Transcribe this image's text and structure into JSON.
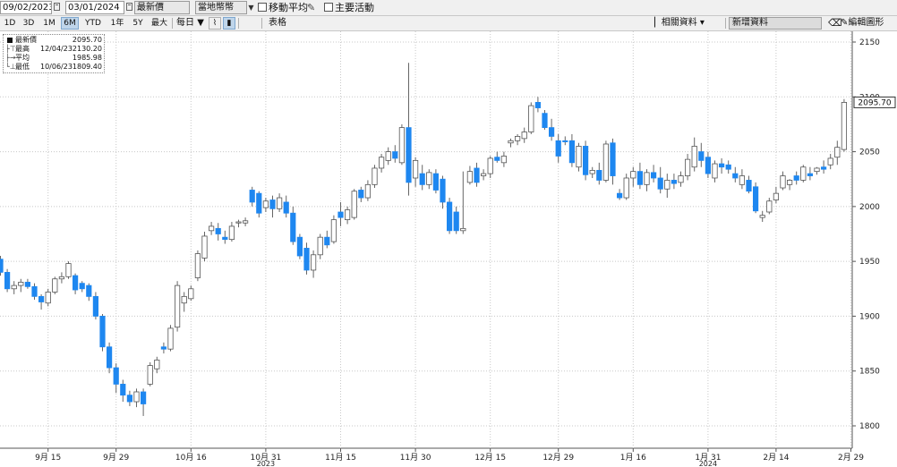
{
  "toolbar": {
    "start_date": "09/02/2023",
    "end_date": "03/01/2024",
    "price_type": "最新價",
    "currency": "當地幣幣",
    "moving_avg_label": "移動平均",
    "key_events_label": "主要活動"
  },
  "periods": [
    "1D",
    "3D",
    "1M",
    "6M",
    "YTD",
    "1年",
    "5Y",
    "最大"
  ],
  "active_period": "6M",
  "frequency": "每日",
  "chart_type_label": "表格",
  "related_data_label": "相關資料",
  "add_data_label": "新增資料",
  "edit_chart_label": "編輯圖形",
  "legend": {
    "items": [
      {
        "name": "最新價",
        "date": "",
        "value": "2095.70"
      },
      {
        "name": "最高",
        "date": "12/04/23",
        "value": "2130.20"
      },
      {
        "name": "平均",
        "date": "",
        "value": "1985.98"
      },
      {
        "name": "最低",
        "date": "10/06/23",
        "value": "1809.40"
      }
    ]
  },
  "last_price_tag": "2095.70",
  "chart_data": {
    "type": "candlestick",
    "ylim": [
      1790,
      2160
    ],
    "y_ticks": [
      1800,
      1850,
      1900,
      1950,
      2000,
      2050,
      2100,
      2150
    ],
    "grid": true,
    "legend_position": "top-left",
    "up_color": "#ffffff",
    "down_color": "#1e87f0",
    "x_tick_labels": [
      {
        "label": "9月 15",
        "index": 7
      },
      {
        "label": "9月 29",
        "index": 17
      },
      {
        "label": "10月 16",
        "index": 28
      },
      {
        "label": "10月 31",
        "index": 39
      },
      {
        "label": "11月 15",
        "index": 50
      },
      {
        "label": "11月 30",
        "index": 61
      },
      {
        "label": "12月 15",
        "index": 72
      },
      {
        "label": "12月 29",
        "index": 82
      },
      {
        "label": "1月 16",
        "index": 93
      },
      {
        "label": "1月 31",
        "index": 104
      },
      {
        "label": "2月 14",
        "index": 114
      },
      {
        "label": "2月 29",
        "index": 125
      }
    ],
    "year_labels": [
      {
        "label": "2023",
        "index": 39
      },
      {
        "label": "2024",
        "index": 104
      }
    ],
    "ohlc": [
      [
        1952,
        1955,
        1937,
        1940
      ],
      [
        1940,
        1943,
        1922,
        1925
      ],
      [
        1925,
        1932,
        1920,
        1928
      ],
      [
        1928,
        1934,
        1922,
        1931
      ],
      [
        1931,
        1934,
        1925,
        1927
      ],
      [
        1927,
        1930,
        1915,
        1918
      ],
      [
        1918,
        1920,
        1906,
        1913
      ],
      [
        1912,
        1925,
        1909,
        1922
      ],
      [
        1922,
        1936,
        1920,
        1934
      ],
      [
        1934,
        1940,
        1930,
        1936
      ],
      [
        1936,
        1950,
        1934,
        1948
      ],
      [
        1937,
        1939,
        1920,
        1924
      ],
      [
        1930,
        1932,
        1922,
        1925
      ],
      [
        1928,
        1930,
        1914,
        1918
      ],
      [
        1918,
        1922,
        1897,
        1900
      ],
      [
        1900,
        1902,
        1868,
        1872
      ],
      [
        1872,
        1876,
        1848,
        1853
      ],
      [
        1853,
        1857,
        1830,
        1838
      ],
      [
        1838,
        1842,
        1822,
        1828
      ],
      [
        1828,
        1832,
        1818,
        1822
      ],
      [
        1822,
        1834,
        1817,
        1831
      ],
      [
        1831,
        1834,
        1809,
        1820
      ],
      [
        1838,
        1858,
        1836,
        1855
      ],
      [
        1852,
        1863,
        1848,
        1860
      ],
      [
        1872,
        1876,
        1866,
        1870
      ],
      [
        1870,
        1892,
        1868,
        1889
      ],
      [
        1890,
        1932,
        1886,
        1928
      ],
      [
        1912,
        1922,
        1904,
        1918
      ],
      [
        1916,
        1928,
        1914,
        1925
      ],
      [
        1935,
        1960,
        1932,
        1957
      ],
      [
        1953,
        1977,
        1950,
        1973
      ],
      [
        1978,
        1986,
        1974,
        1982
      ],
      [
        1980,
        1985,
        1969,
        1975
      ],
      [
        1972,
        1978,
        1966,
        1970
      ],
      [
        1970,
        1986,
        1968,
        1982
      ],
      [
        1985,
        1988,
        1981,
        1986
      ],
      [
        1985,
        1990,
        1982,
        1987
      ],
      [
        2015,
        2018,
        2000,
        2004
      ],
      [
        2012,
        2014,
        1990,
        1994
      ],
      [
        1999,
        2008,
        1995,
        2005
      ],
      [
        2006,
        2010,
        1990,
        1998
      ],
      [
        1998,
        2012,
        1995,
        2008
      ],
      [
        2004,
        2010,
        1990,
        1994
      ],
      [
        1994,
        2000,
        1965,
        1968
      ],
      [
        1972,
        1975,
        1952,
        1955
      ],
      [
        1962,
        1967,
        1938,
        1942
      ],
      [
        1942,
        1960,
        1935,
        1956
      ],
      [
        1956,
        1975,
        1952,
        1972
      ],
      [
        1972,
        1978,
        1962,
        1965
      ],
      [
        1968,
        1992,
        1966,
        1988
      ],
      [
        1995,
        2004,
        1982,
        1990
      ],
      [
        1988,
        2000,
        1984,
        1997
      ],
      [
        1990,
        2016,
        1988,
        2014
      ],
      [
        2015,
        2018,
        2004,
        2008
      ],
      [
        2008,
        2024,
        2005,
        2020
      ],
      [
        2020,
        2038,
        2017,
        2035
      ],
      [
        2035,
        2048,
        2031,
        2045
      ],
      [
        2042,
        2054,
        2038,
        2050
      ],
      [
        2050,
        2056,
        2040,
        2044
      ],
      [
        2040,
        2075,
        2038,
        2072
      ],
      [
        2072,
        2131,
        2010,
        2022
      ],
      [
        2026,
        2045,
        2018,
        2042
      ],
      [
        2030,
        2038,
        2015,
        2020
      ],
      [
        2020,
        2034,
        2016,
        2031
      ],
      [
        2030,
        2034,
        2012,
        2015
      ],
      [
        2025,
        2028,
        1998,
        2004
      ],
      [
        2004,
        2008,
        1975,
        1978
      ],
      [
        1995,
        2000,
        1975,
        1978
      ],
      [
        1978,
        2032,
        1975,
        1980
      ],
      [
        2022,
        2037,
        2020,
        2032
      ],
      [
        2035,
        2040,
        2018,
        2022
      ],
      [
        2028,
        2034,
        2024,
        2030
      ],
      [
        2030,
        2046,
        2026,
        2044
      ],
      [
        2045,
        2050,
        2040,
        2042
      ],
      [
        2040,
        2050,
        2036,
        2046
      ],
      [
        2058,
        2062,
        2054,
        2060
      ],
      [
        2060,
        2066,
        2056,
        2064
      ],
      [
        2062,
        2072,
        2058,
        2068
      ],
      [
        2068,
        2095,
        2066,
        2092
      ],
      [
        2095,
        2100,
        2086,
        2090
      ],
      [
        2085,
        2088,
        2070,
        2072
      ],
      [
        2072,
        2080,
        2060,
        2064
      ],
      [
        2060,
        2066,
        2040,
        2046
      ],
      [
        2060,
        2064,
        2056,
        2059
      ],
      [
        2060,
        2066,
        2036,
        2040
      ],
      [
        2036,
        2058,
        2032,
        2055
      ],
      [
        2055,
        2060,
        2024,
        2029
      ],
      [
        2030,
        2036,
        2026,
        2033
      ],
      [
        2033,
        2040,
        2020,
        2024
      ],
      [
        2024,
        2060,
        2022,
        2057
      ],
      [
        2058,
        2062,
        2020,
        2028
      ],
      [
        2012,
        2016,
        2006,
        2008
      ],
      [
        2008,
        2030,
        2006,
        2026
      ],
      [
        2026,
        2036,
        2018,
        2032
      ],
      [
        2032,
        2040,
        2016,
        2020
      ],
      [
        2020,
        2034,
        2014,
        2031
      ],
      [
        2031,
        2038,
        2022,
        2026
      ],
      [
        2026,
        2036,
        2012,
        2016
      ],
      [
        2016,
        2030,
        2008,
        2024
      ],
      [
        2024,
        2030,
        2016,
        2021
      ],
      [
        2022,
        2032,
        2018,
        2028
      ],
      [
        2028,
        2048,
        2024,
        2043
      ],
      [
        2036,
        2063,
        2032,
        2055
      ],
      [
        2050,
        2058,
        2036,
        2042
      ],
      [
        2045,
        2050,
        2026,
        2030
      ],
      [
        2026,
        2042,
        2022,
        2039
      ],
      [
        2039,
        2044,
        2030,
        2036
      ],
      [
        2038,
        2042,
        2030,
        2034
      ],
      [
        2030,
        2036,
        2022,
        2026
      ],
      [
        2020,
        2034,
        2016,
        2028
      ],
      [
        2024,
        2028,
        2012,
        2014
      ],
      [
        2018,
        2022,
        1994,
        1996
      ],
      [
        1990,
        1996,
        1986,
        1992
      ],
      [
        1995,
        2008,
        1993,
        2005
      ],
      [
        2006,
        2018,
        2003,
        2012
      ],
      [
        2017,
        2032,
        2015,
        2028
      ],
      [
        2020,
        2025,
        2015,
        2024
      ],
      [
        2028,
        2032,
        2020,
        2024
      ],
      [
        2024,
        2038,
        2022,
        2036
      ],
      [
        2030,
        2036,
        2024,
        2028
      ],
      [
        2032,
        2036,
        2029,
        2035
      ],
      [
        2036,
        2042,
        2030,
        2034
      ],
      [
        2038,
        2048,
        2034,
        2044
      ],
      [
        2045,
        2060,
        2038,
        2054
      ],
      [
        2052,
        2098,
        2050,
        2095
      ]
    ]
  }
}
